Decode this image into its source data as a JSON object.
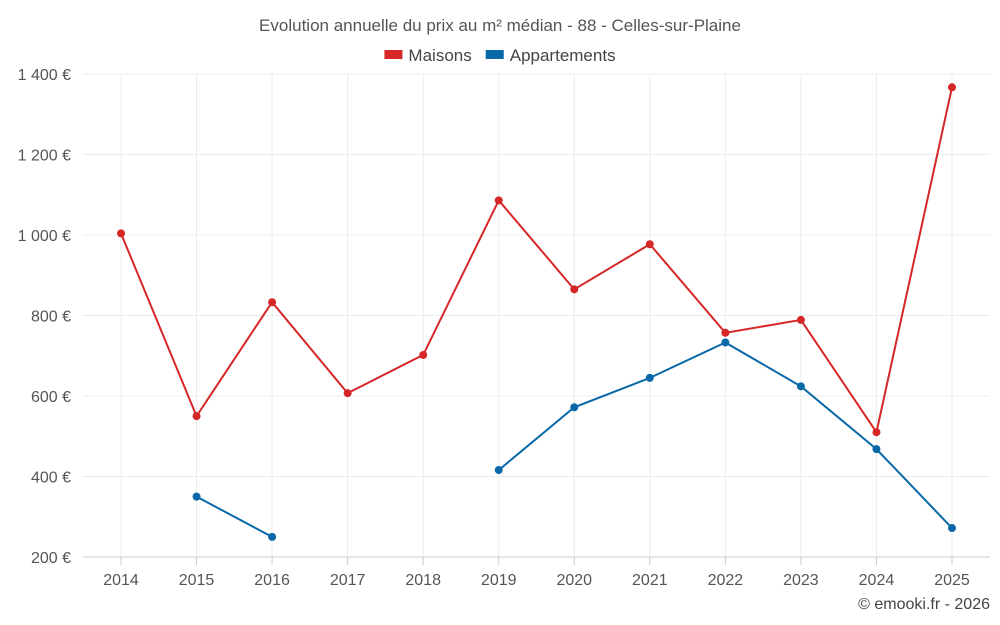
{
  "chart_data": {
    "type": "line",
    "title": "Evolution annuelle du prix au m² médian - 88 - Celles-sur-Plaine",
    "categories": [
      "2014",
      "2015",
      "2016",
      "2017",
      "2018",
      "2019",
      "2020",
      "2021",
      "2022",
      "2023",
      "2024",
      "2025"
    ],
    "series": [
      {
        "name": "Maisons",
        "color": "#d62728",
        "values": [
          1004,
          550,
          833,
          607,
          702,
          1086,
          865,
          977,
          757,
          789,
          510,
          1367
        ]
      },
      {
        "name": "Appartements",
        "color": "#0868a8",
        "values": [
          null,
          350,
          250,
          null,
          null,
          416,
          572,
          645,
          733,
          624,
          468,
          272
        ]
      }
    ],
    "ylim": [
      200,
      1400
    ],
    "yticks": [
      200,
      400,
      600,
      800,
      1000,
      1200,
      1400
    ],
    "ytick_labels": [
      "200 €",
      "400 €",
      "600 €",
      "800 €",
      "1 000 €",
      "1 200 €",
      "1 400 €"
    ],
    "legend_position": "top-center",
    "grid": true,
    "xlabel": "",
    "ylabel": ""
  },
  "credit": "© emooki.fr - 2026"
}
